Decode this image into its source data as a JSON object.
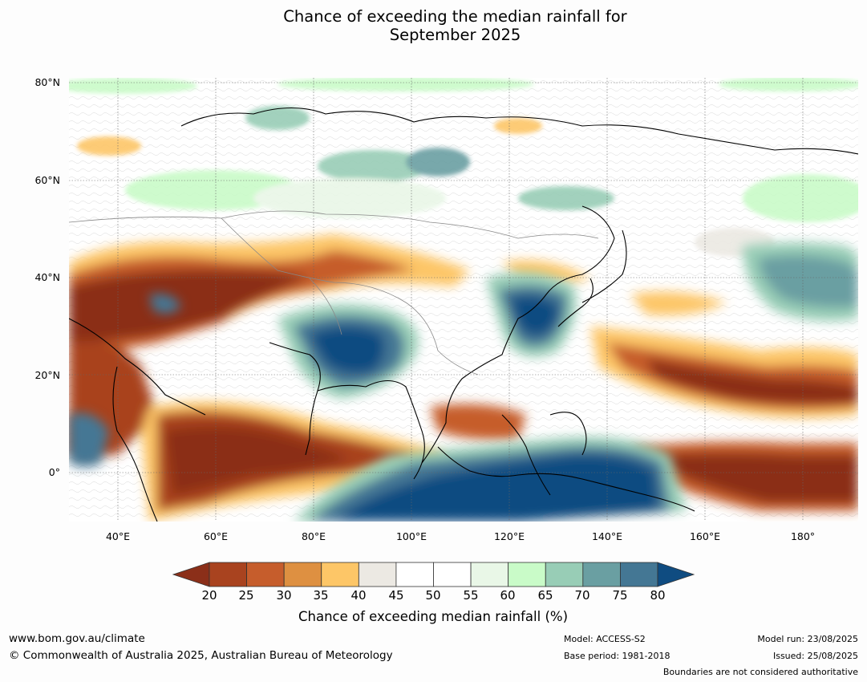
{
  "title": {
    "line1": "Chance of exceeding the median rainfall for",
    "line2": "September 2025"
  },
  "map": {
    "projection": "equirectangular",
    "lon_range": [
      30,
      191
    ],
    "lat_range": [
      -10,
      80
    ],
    "lat_ticks": [
      "80°N",
      "60°N",
      "40°N",
      "20°N",
      "0°"
    ],
    "lon_ticks": [
      "40°E",
      "60°E",
      "80°E",
      "100°E",
      "120°E",
      "140°E",
      "160°E",
      "180°"
    ],
    "gridlines": true,
    "regions_summary": {
      "dry_below_30": [
        "Middle East / Iran-Afghanistan",
        "Arabian Sea / western equatorial Indian Ocean",
        "Tropical northwest Pacific 15-25N",
        "Equatorial central Pacific",
        "South China Sea / Philippines"
      ],
      "wet_above_70": [
        "Indian subcontinent / Bay of Bengal",
        "Eastern China / Yellow Sea / Korea",
        "Maritime Continent / eastern Indian Ocean south of equator",
        "North Pacific east of Japan"
      ]
    }
  },
  "colorbar": {
    "label": "Chance of exceeding median rainfall (%)",
    "ticks": [
      "20",
      "25",
      "30",
      "35",
      "40",
      "45",
      "50",
      "55",
      "60",
      "65",
      "70",
      "75",
      "80"
    ],
    "colors": [
      "#8b2f19",
      "#a9431f",
      "#c65d2c",
      "#de9041",
      "#fdc667",
      "#ece9e3",
      "#ffffff",
      "#ffffff",
      "#e9f7e7",
      "#c9fbc8",
      "#98cdb6",
      "#6a9fa2",
      "#447794",
      "#0f4c81"
    ],
    "extend": "both"
  },
  "footer": {
    "url": "www.bom.gov.au/climate",
    "copyright": "© Commonwealth of Australia 2025, Australian Bureau of Meteorology",
    "model": "Model: ACCESS-S2",
    "base_period": "Base period: 1981-2018",
    "model_run": "Model run: 23/08/2025",
    "issued": "Issued: 25/08/2025",
    "disclaimer": "Boundaries are not considered authoritative"
  }
}
